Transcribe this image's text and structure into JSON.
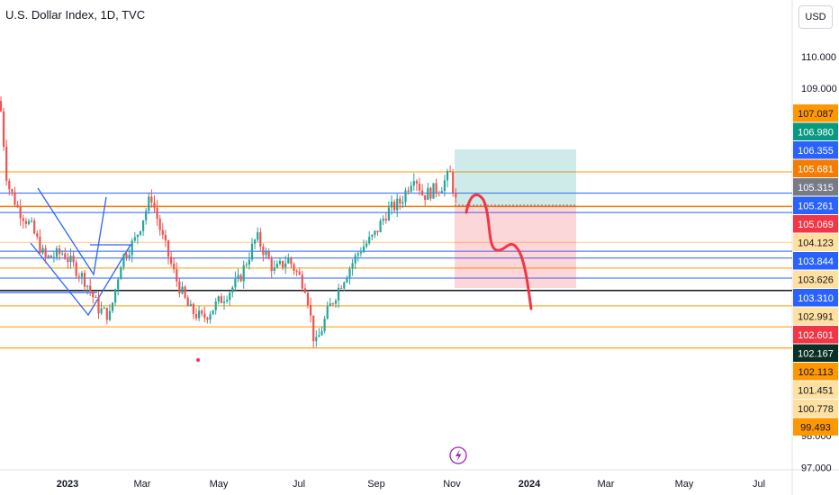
{
  "header": {
    "title": "U.S. Dollar Index, 1D, TVC",
    "currency": "USD"
  },
  "colors": {
    "up": "#26a69a",
    "down": "#ef5350",
    "orange": "#ff9800",
    "blue": "#2962ff",
    "dark": "#131722"
  },
  "price_axis": [
    {
      "text": "110.000",
      "v": 110.0
    },
    {
      "text": "109.000",
      "v": 109.0
    },
    {
      "text": "98.000",
      "v": 98.0
    },
    {
      "text": "97.000",
      "v": 97.0
    }
  ],
  "badges": [
    {
      "text": "107.087",
      "v": 107.087,
      "bg": "#ff9800",
      "fg": "#131722"
    },
    {
      "text": "106.980",
      "v": 106.98,
      "bg": "#089981",
      "fg": "#ffffff"
    },
    {
      "text": "106.355",
      "v": 106.355,
      "bg": "#2962ff",
      "fg": "#ffffff"
    },
    {
      "text": "105.681",
      "v": 105.681,
      "bg": "#f57c00",
      "fg": "#ffffff"
    },
    {
      "text": "105.315",
      "v": 105.315,
      "bg": "#787b86",
      "fg": "#ffffff"
    },
    {
      "text": "105.261",
      "v": 105.261,
      "bg": "#2962ff",
      "fg": "#ffffff"
    },
    {
      "text": "105.069",
      "v": 105.069,
      "bg": "#f23645",
      "fg": "#ffffff"
    },
    {
      "text": "104.123",
      "v": 104.123,
      "bg": "#ffe0a0",
      "fg": "#131722"
    },
    {
      "text": "103.844",
      "v": 103.844,
      "bg": "#2962ff",
      "fg": "#ffffff"
    },
    {
      "text": "103.626",
      "v": 103.626,
      "bg": "#ffe0a0",
      "fg": "#131722"
    },
    {
      "text": "103.310",
      "v": 103.31,
      "bg": "#2962ff",
      "fg": "#ffffff"
    },
    {
      "text": "102.991",
      "v": 102.991,
      "bg": "#ffe0a0",
      "fg": "#131722"
    },
    {
      "text": "102.601",
      "v": 102.601,
      "bg": "#f23645",
      "fg": "#ffffff"
    },
    {
      "text": "102.167",
      "v": 102.167,
      "bg": "#0b2e25",
      "fg": "#ffffff"
    },
    {
      "text": "102.113",
      "v": 102.113,
      "bg": "#ff9800",
      "fg": "#131722"
    },
    {
      "text": "101.451",
      "v": 101.451,
      "bg": "#ffe0a0",
      "fg": "#131722"
    },
    {
      "text": "100.778",
      "v": 100.778,
      "bg": "#ffe0a0",
      "fg": "#131722"
    },
    {
      "text": "99.493",
      "v": 99.493,
      "bg": "#ff9800",
      "fg": "#131722"
    }
  ],
  "time_axis": [
    {
      "text": "2023",
      "bold": true
    },
    {
      "text": "Mar",
      "bold": false
    },
    {
      "text": "May",
      "bold": false
    },
    {
      "text": "Jul",
      "bold": false
    },
    {
      "text": "Sep",
      "bold": false
    },
    {
      "text": "Nov",
      "bold": false
    },
    {
      "text": "2024",
      "bold": true
    },
    {
      "text": "Mar",
      "bold": false
    },
    {
      "text": "May",
      "bold": false
    },
    {
      "text": "Jul",
      "bold": false
    }
  ],
  "horizontal_levels": [
    {
      "v": 106.355,
      "color": "#ff9800",
      "w": 1
    },
    {
      "v": 105.681,
      "color": "#2962ff",
      "w": 1
    },
    {
      "v": 105.261,
      "color": "#f57c00",
      "w": 1.5
    },
    {
      "v": 105.069,
      "color": "#2962ff",
      "w": 1
    },
    {
      "v": 104.123,
      "color": "#ffcc80",
      "w": 1
    },
    {
      "v": 103.844,
      "color": "#2962ff",
      "w": 1
    },
    {
      "v": 103.626,
      "color": "#2962ff",
      "w": 1
    },
    {
      "v": 103.31,
      "color": "#ff9800",
      "w": 1
    },
    {
      "v": 102.991,
      "color": "#2962ff",
      "w": 1
    },
    {
      "v": 102.601,
      "color": "#131722",
      "w": 1.5
    },
    {
      "v": 102.113,
      "color": "#ff9800",
      "w": 1
    },
    {
      "v": 101.451,
      "color": "#ff9800",
      "w": 1
    },
    {
      "v": 100.778,
      "color": "#ff9800",
      "w": 1.2
    }
  ]
}
